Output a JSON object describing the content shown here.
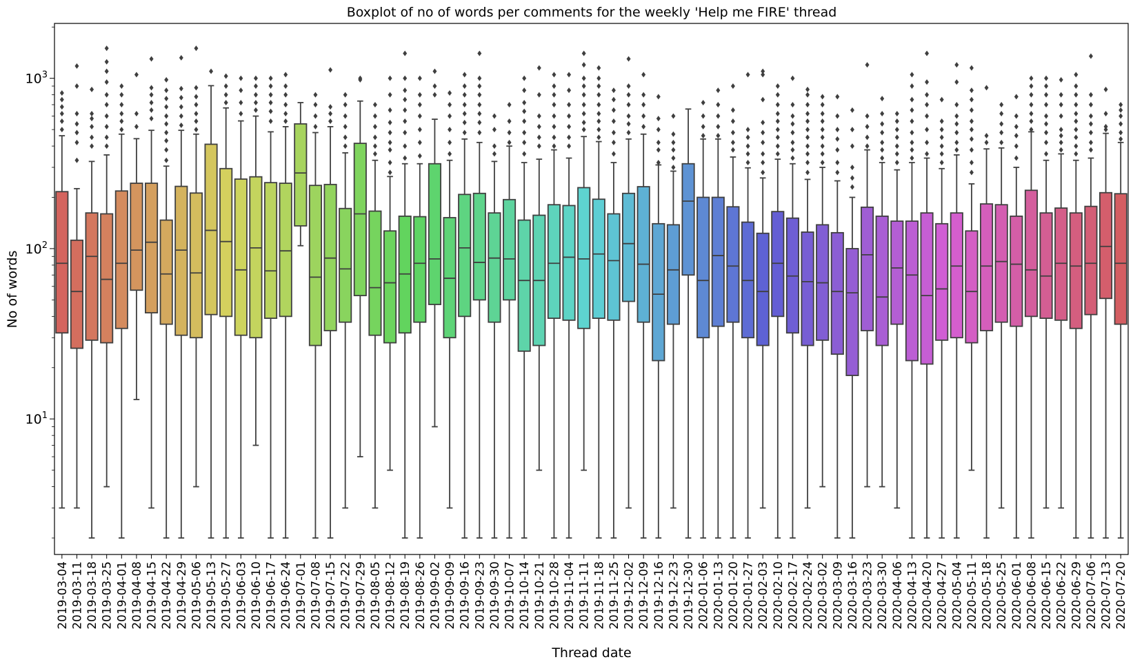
{
  "chart_data": {
    "type": "boxplot",
    "title": "Boxplot of no of words per comments for the weekly 'Help me FIRE' thread",
    "xlabel": "Thread date",
    "ylabel": "No of words",
    "yscale": "log",
    "ylim": [
      1.6,
      2100
    ],
    "yticks": [
      {
        "value": 10,
        "base": "10",
        "exp": "1"
      },
      {
        "value": 100,
        "base": "10",
        "exp": "2"
      },
      {
        "value": 1000,
        "base": "10",
        "exp": "3"
      }
    ],
    "grid": false,
    "legend": "none",
    "categories": [
      "2019-03-04",
      "2019-03-11",
      "2019-03-18",
      "2019-03-25",
      "2019-04-01",
      "2019-04-08",
      "2019-04-15",
      "2019-04-22",
      "2019-04-29",
      "2019-05-06",
      "2019-05-13",
      "2019-05-27",
      "2019-06-03",
      "2019-06-10",
      "2019-06-17",
      "2019-06-24",
      "2019-07-01",
      "2019-07-08",
      "2019-07-15",
      "2019-07-22",
      "2019-07-29",
      "2019-08-05",
      "2019-08-12",
      "2019-08-19",
      "2019-08-26",
      "2019-09-02",
      "2019-09-09",
      "2019-09-16",
      "2019-09-23",
      "2019-09-30",
      "2019-10-07",
      "2019-10-14",
      "2019-10-21",
      "2019-10-28",
      "2019-11-04",
      "2019-11-11",
      "2019-11-18",
      "2019-11-25",
      "2019-12-02",
      "2019-12-09",
      "2019-12-16",
      "2019-12-23",
      "2019-12-30",
      "2020-01-06",
      "2020-01-13",
      "2020-01-20",
      "2020-01-27",
      "2020-02-03",
      "2020-02-10",
      "2020-02-17",
      "2020-02-24",
      "2020-03-02",
      "2020-03-09",
      "2020-03-16",
      "2020-03-23",
      "2020-03-30",
      "2020-04-06",
      "2020-04-13",
      "2020-04-20",
      "2020-04-27",
      "2020-05-04",
      "2020-05-11",
      "2020-05-18",
      "2020-05-25",
      "2020-06-01",
      "2020-06-08",
      "2020-06-15",
      "2020-06-22",
      "2020-06-29",
      "2020-07-06",
      "2020-07-13",
      "2020-07-20"
    ],
    "boxes": [
      {
        "q1": 32,
        "median": 82,
        "q3": 216,
        "whislo": 3,
        "whishi": 460,
        "fliers": [
          500,
          560,
          620,
          680,
          750,
          820
        ]
      },
      {
        "q1": 26,
        "median": 56,
        "q3": 112,
        "whislo": 3,
        "whishi": 225,
        "fliers": [
          330,
          420,
          480,
          540,
          620,
          900,
          1180
        ]
      },
      {
        "q1": 29,
        "median": 90,
        "q3": 162,
        "whislo": 2,
        "whishi": 325,
        "fliers": [
          400,
          450,
          520,
          580,
          620,
          860
        ]
      },
      {
        "q1": 28,
        "median": 66,
        "q3": 160,
        "whislo": 4,
        "whishi": 355,
        "fliers": [
          400,
          450,
          520,
          600,
          700,
          800,
          950,
          1100,
          1250,
          1500
        ]
      },
      {
        "q1": 34,
        "median": 82,
        "q3": 218,
        "whislo": 2,
        "whishi": 470,
        "fliers": [
          500,
          560,
          620,
          700,
          800,
          900
        ]
      },
      {
        "q1": 57,
        "median": 98,
        "q3": 242,
        "whislo": 13,
        "whishi": 442,
        "fliers": [
          520,
          620,
          1050
        ]
      },
      {
        "q1": 42,
        "median": 109,
        "q3": 242,
        "whislo": 3,
        "whishi": 495,
        "fliers": [
          580,
          650,
          720,
          800,
          880,
          1300
        ]
      },
      {
        "q1": 36,
        "median": 71,
        "q3": 147,
        "whislo": 2,
        "whishi": 305,
        "fliers": [
          330,
          380,
          430,
          480,
          540,
          600,
          680,
          760,
          850,
          980
        ]
      },
      {
        "q1": 31,
        "median": 98,
        "q3": 232,
        "whislo": 2,
        "whishi": 495,
        "fliers": [
          530,
          600,
          680,
          770,
          870,
          1320
        ]
      },
      {
        "q1": 30,
        "median": 72,
        "q3": 212,
        "whislo": 4,
        "whishi": 470,
        "fliers": [
          500,
          560,
          620,
          700,
          780,
          880,
          1500
        ]
      },
      {
        "q1": 41,
        "median": 128,
        "q3": 410,
        "whislo": 2,
        "whishi": 905,
        "fliers": [
          1100
        ]
      },
      {
        "q1": 40,
        "median": 110,
        "q3": 295,
        "whislo": 2,
        "whishi": 670,
        "fliers": [
          720,
          800,
          900,
          1030
        ]
      },
      {
        "q1": 31,
        "median": 75,
        "q3": 256,
        "whislo": 2,
        "whishi": 562,
        "fliers": [
          620,
          720,
          850,
          1000
        ]
      },
      {
        "q1": 30,
        "median": 101,
        "q3": 264,
        "whislo": 7,
        "whishi": 600,
        "fliers": [
          650,
          720,
          800,
          900,
          1000
        ]
      },
      {
        "q1": 39,
        "median": 74,
        "q3": 244,
        "whislo": 2,
        "whishi": 485,
        "fliers": [
          560,
          640,
          720,
          800,
          900,
          1000
        ]
      },
      {
        "q1": 40,
        "median": 97,
        "q3": 242,
        "whislo": 2,
        "whishi": 520,
        "fliers": [
          560,
          620,
          700,
          800,
          900,
          1050
        ]
      },
      {
        "q1": 136,
        "median": 278,
        "q3": 540,
        "whislo": 104,
        "whishi": 720,
        "fliers": []
      },
      {
        "q1": 27,
        "median": 68,
        "q3": 235,
        "whislo": 2,
        "whishi": 480,
        "fliers": [
          520,
          600,
          700,
          800
        ]
      },
      {
        "q1": 33,
        "median": 88,
        "q3": 238,
        "whislo": 2,
        "whishi": 520,
        "fliers": [
          560,
          620,
          680,
          1120
        ]
      },
      {
        "q1": 37,
        "median": 76,
        "q3": 172,
        "whislo": 3,
        "whishi": 365,
        "fliers": [
          400,
          450,
          520,
          600,
          700,
          800
        ]
      },
      {
        "q1": 53,
        "median": 160,
        "q3": 415,
        "whislo": 6,
        "whishi": 735,
        "fliers": [
          980,
          1000
        ]
      },
      {
        "q1": 31,
        "median": 59,
        "q3": 166,
        "whislo": 3,
        "whishi": 330,
        "fliers": [
          360,
          400,
          450,
          520,
          600,
          700
        ]
      },
      {
        "q1": 28,
        "median": 63,
        "q3": 127,
        "whislo": 5,
        "whishi": 265,
        "fliers": [
          280,
          320,
          380,
          420,
          480,
          550,
          650,
          800,
          1000
        ]
      },
      {
        "q1": 32,
        "median": 71,
        "q3": 155,
        "whislo": 2,
        "whishi": 315,
        "fliers": [
          340,
          400,
          480,
          560,
          650,
          750,
          850,
          1000,
          1400
        ]
      },
      {
        "q1": 37,
        "median": 82,
        "q3": 154,
        "whislo": 2,
        "whishi": 315,
        "fliers": [
          350,
          420,
          500,
          600,
          700,
          800,
          1000
        ]
      },
      {
        "q1": 47,
        "median": 87,
        "q3": 315,
        "whislo": 9,
        "whishi": 575,
        "fliers": [
          800,
          900,
          1100
        ]
      },
      {
        "q1": 30,
        "median": 67,
        "q3": 152,
        "whislo": 3,
        "whishi": 330,
        "fliers": [
          360,
          420,
          500,
          600,
          700,
          820
        ]
      },
      {
        "q1": 40,
        "median": 101,
        "q3": 208,
        "whislo": 2,
        "whishi": 440,
        "fliers": [
          480,
          550,
          620,
          700,
          800,
          900,
          1050
        ]
      },
      {
        "q1": 50,
        "median": 83,
        "q3": 211,
        "whislo": 2,
        "whishi": 420,
        "fliers": [
          480,
          550,
          620,
          700,
          800,
          900,
          1000,
          1400
        ]
      },
      {
        "q1": 37,
        "median": 88,
        "q3": 162,
        "whislo": 2,
        "whishi": 325,
        "fliers": [
          360,
          400,
          500,
          600
        ]
      },
      {
        "q1": 50,
        "median": 87,
        "q3": 194,
        "whislo": 2,
        "whishi": 400,
        "fliers": [
          420,
          480,
          560,
          700
        ]
      },
      {
        "q1": 25,
        "median": 65,
        "q3": 147,
        "whislo": 2,
        "whishi": 320,
        "fliers": [
          360,
          420,
          480,
          560,
          640,
          720,
          850,
          1000
        ]
      },
      {
        "q1": 27,
        "median": 65,
        "q3": 157,
        "whislo": 5,
        "whishi": 335,
        "fliers": [
          400,
          450,
          520,
          600,
          800,
          1150
        ]
      },
      {
        "q1": 39,
        "median": 82,
        "q3": 181,
        "whislo": 2,
        "whishi": 380,
        "fliers": [
          400,
          450,
          520,
          600,
          700,
          800,
          900,
          1050
        ]
      },
      {
        "q1": 38,
        "median": 89,
        "q3": 179,
        "whislo": 2,
        "whishi": 340,
        "fliers": [
          400,
          450,
          520,
          600,
          700,
          850,
          1050
        ]
      },
      {
        "q1": 34,
        "median": 87,
        "q3": 228,
        "whislo": 5,
        "whishi": 455,
        "fliers": [
          500,
          550,
          620,
          700,
          800,
          900,
          1000,
          1200,
          1400
        ]
      },
      {
        "q1": 39,
        "median": 93,
        "q3": 195,
        "whislo": 2,
        "whishi": 425,
        "fliers": [
          450,
          500,
          560,
          620,
          700,
          800,
          900,
          1000,
          1150
        ]
      },
      {
        "q1": 38,
        "median": 85,
        "q3": 160,
        "whislo": 2,
        "whishi": 320,
        "fliers": [
          360,
          420,
          480,
          560,
          650,
          750,
          850
        ]
      },
      {
        "q1": 49,
        "median": 107,
        "q3": 211,
        "whislo": 3,
        "whishi": 440,
        "fliers": [
          480,
          540,
          600,
          700,
          800,
          900,
          1300
        ]
      },
      {
        "q1": 37,
        "median": 81,
        "q3": 231,
        "whislo": 2,
        "whishi": 470,
        "fliers": [
          520,
          600,
          700,
          800,
          1050
        ]
      },
      {
        "q1": 22,
        "median": 54,
        "q3": 140,
        "whislo": 2,
        "whishi": 310,
        "fliers": [
          320,
          380,
          420,
          500,
          580,
          780
        ]
      },
      {
        "q1": 36,
        "median": 75,
        "q3": 138,
        "whislo": 3,
        "whishi": 285,
        "fliers": [
          300,
          340,
          380,
          420,
          470,
          600
        ]
      },
      {
        "q1": 70,
        "median": 190,
        "q3": 315,
        "whislo": 2,
        "whishi": 660,
        "fliers": []
      },
      {
        "q1": 30,
        "median": 65,
        "q3": 200,
        "whislo": 2,
        "whishi": 440,
        "fliers": [
          460,
          520,
          600,
          720
        ]
      },
      {
        "q1": 35,
        "median": 91,
        "q3": 200,
        "whislo": 2,
        "whishi": 440,
        "fliers": [
          460,
          520,
          600,
          700,
          850
        ]
      },
      {
        "q1": 37,
        "median": 79,
        "q3": 176,
        "whislo": 2,
        "whishi": 345,
        "fliers": [
          380,
          420,
          480,
          560,
          650,
          900
        ]
      },
      {
        "q1": 30,
        "median": 65,
        "q3": 143,
        "whislo": 2,
        "whishi": 298,
        "fliers": [
          320,
          360,
          400,
          450,
          500,
          1050
        ]
      },
      {
        "q1": 27,
        "median": 56,
        "q3": 123,
        "whislo": 3,
        "whishi": 260,
        "fliers": [
          280,
          320,
          360,
          420,
          480,
          550,
          750,
          1050,
          1100
        ]
      },
      {
        "q1": 40,
        "median": 82,
        "q3": 165,
        "whislo": 2,
        "whishi": 335,
        "fliers": [
          360,
          400,
          450,
          500,
          560,
          620,
          700,
          800,
          900
        ]
      },
      {
        "q1": 32,
        "median": 69,
        "q3": 151,
        "whislo": 2,
        "whishi": 315,
        "fliers": [
          340,
          380,
          420,
          480,
          540,
          600,
          700,
          1000
        ]
      },
      {
        "q1": 27,
        "median": 64,
        "q3": 125,
        "whislo": 3,
        "whishi": 255,
        "fliers": [
          280,
          320,
          360,
          400,
          450,
          500,
          560,
          620,
          700,
          800,
          860
        ]
      },
      {
        "q1": 29,
        "median": 63,
        "q3": 138,
        "whislo": 4,
        "whishi": 300,
        "fliers": [
          320,
          360,
          400,
          450,
          500,
          560,
          620,
          700,
          780
        ]
      },
      {
        "q1": 24,
        "median": 56,
        "q3": 124,
        "whislo": 2,
        "whishi": 250,
        "fliers": [
          280,
          320,
          380,
          440,
          500,
          600,
          780
        ]
      },
      {
        "q1": 18,
        "median": 55,
        "q3": 100,
        "whislo": 2,
        "whishi": 200,
        "fliers": [
          230,
          260,
          300,
          400,
          500,
          650
        ]
      },
      {
        "q1": 33,
        "median": 92,
        "q3": 175,
        "whislo": 4,
        "whishi": 380,
        "fliers": [
          400,
          450,
          520,
          600,
          1200
        ]
      },
      {
        "q1": 27,
        "median": 52,
        "q3": 155,
        "whislo": 4,
        "whishi": 320,
        "fliers": [
          340,
          380,
          420,
          480,
          540,
          620,
          760
        ]
      },
      {
        "q1": 36,
        "median": 77,
        "q3": 145,
        "whislo": 3,
        "whishi": 290,
        "fliers": [
          320,
          360,
          400,
          450,
          500,
          560,
          620
        ]
      },
      {
        "q1": 22,
        "median": 70,
        "q3": 145,
        "whislo": 2,
        "whishi": 320,
        "fliers": [
          340,
          380,
          420,
          480,
          560,
          650,
          750,
          900,
          1050
        ]
      },
      {
        "q1": 21,
        "median": 53,
        "q3": 162,
        "whislo": 2,
        "whishi": 340,
        "fliers": [
          360,
          420,
          500,
          600,
          700,
          800,
          950,
          1400
        ]
      },
      {
        "q1": 29,
        "median": 58,
        "q3": 140,
        "whislo": 2,
        "whishi": 295,
        "fliers": [
          320,
          360,
          400,
          450,
          500,
          560,
          750
        ]
      },
      {
        "q1": 30,
        "median": 79,
        "q3": 162,
        "whislo": 2,
        "whishi": 355,
        "fliers": [
          380,
          420,
          480,
          540,
          600,
          700,
          950,
          1200
        ]
      },
      {
        "q1": 28,
        "median": 56,
        "q3": 127,
        "whislo": 5,
        "whishi": 240,
        "fliers": [
          280,
          320,
          380,
          440,
          500,
          560,
          650,
          750,
          850,
          1150
        ]
      },
      {
        "q1": 33,
        "median": 79,
        "q3": 183,
        "whislo": 2,
        "whishi": 385,
        "fliers": [
          420,
          460,
          880
        ]
      },
      {
        "q1": 37,
        "median": 84,
        "q3": 181,
        "whislo": 3,
        "whishi": 390,
        "fliers": [
          420,
          480,
          540,
          620,
          700
        ]
      },
      {
        "q1": 35,
        "median": 81,
        "q3": 155,
        "whislo": 2,
        "whishi": 300,
        "fliers": [
          340,
          400,
          460,
          520,
          600,
          780
        ]
      },
      {
        "q1": 40,
        "median": 75,
        "q3": 220,
        "whislo": 2,
        "whishi": 485,
        "fliers": [
          500,
          560,
          620,
          700,
          800,
          900,
          1000
        ]
      },
      {
        "q1": 39,
        "median": 69,
        "q3": 162,
        "whislo": 3,
        "whishi": 330,
        "fliers": [
          360,
          420,
          480,
          540,
          600,
          700,
          800,
          900,
          1000
        ]
      },
      {
        "q1": 38,
        "median": 82,
        "q3": 173,
        "whislo": 3,
        "whishi": 360,
        "fliers": [
          380,
          420,
          460,
          500,
          600,
          700,
          800,
          980
        ]
      },
      {
        "q1": 34,
        "median": 79,
        "q3": 162,
        "whislo": 2,
        "whishi": 330,
        "fliers": [
          360,
          400,
          450,
          500,
          560,
          620,
          700,
          800,
          900,
          1050
        ]
      },
      {
        "q1": 41,
        "median": 82,
        "q3": 177,
        "whislo": 2,
        "whishi": 340,
        "fliers": [
          380,
          420,
          480,
          540,
          600,
          700,
          800,
          1350
        ]
      },
      {
        "q1": 51,
        "median": 103,
        "q3": 213,
        "whislo": 2,
        "whishi": 475,
        "fliers": [
          500,
          520,
          620,
          860
        ]
      },
      {
        "q1": 36,
        "median": 82,
        "q3": 210,
        "whislo": 2,
        "whishi": 420,
        "fliers": [
          440,
          480,
          540,
          600,
          650,
          700
        ]
      }
    ]
  }
}
